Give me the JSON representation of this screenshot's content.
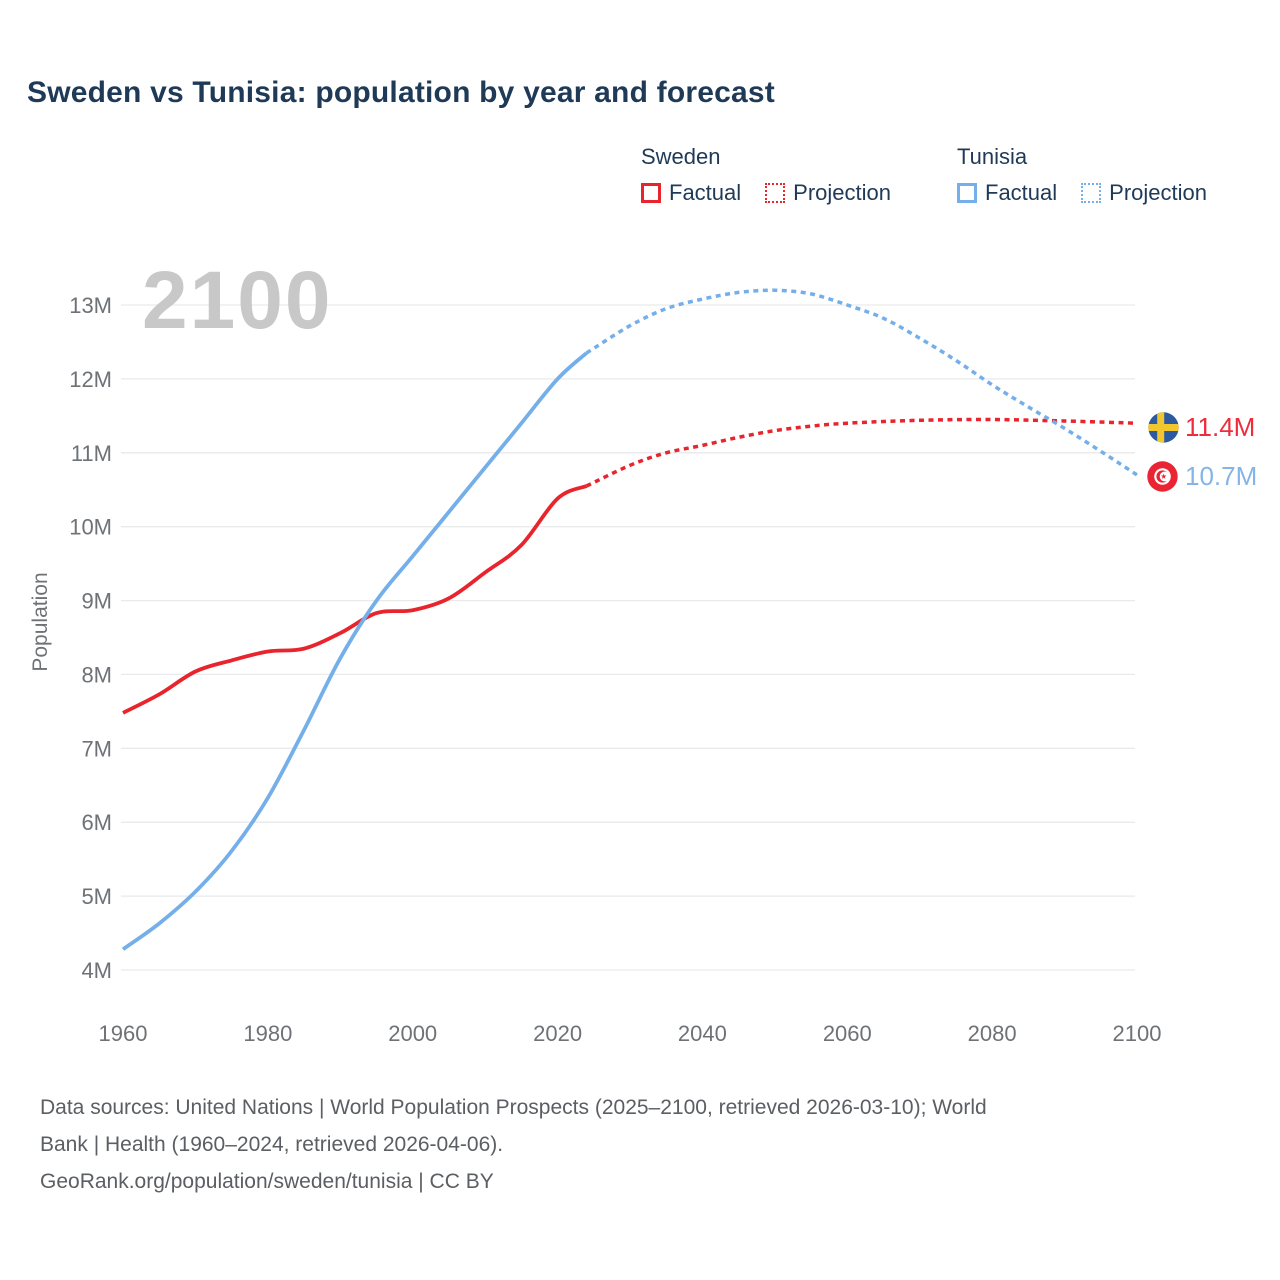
{
  "title": "Sweden vs Tunisia: population by year and forecast",
  "watermark": "2100",
  "legend": {
    "sweden": {
      "name": "Sweden",
      "factual": "Factual",
      "projection": "Projection"
    },
    "tunisia": {
      "name": "Tunisia",
      "factual": "Factual",
      "projection": "Projection"
    }
  },
  "end_labels": {
    "sweden": "11.4M",
    "tunisia": "10.7M"
  },
  "colors": {
    "sweden_line": "#e8242c",
    "tunisia_line": "#74afe9",
    "sweden_label_text": "#ee2d3c",
    "tunisia_label_text": "#85b5e8",
    "title_text": "#1f3a57",
    "axis_text": "#6e7276",
    "gridline": "#e9eaec",
    "watermark": "#c8c8c8",
    "footer_text": "#5b5e62",
    "sweden_flag_blue": "#2c5aa0",
    "sweden_flag_yellow": "#f2c72e",
    "tunisia_flag_red": "#e92433"
  },
  "chart_data": {
    "type": "line",
    "title": "Sweden vs Tunisia: population by year and forecast",
    "xlabel": "",
    "ylabel": "Population",
    "xlim": [
      1960,
      2100
    ],
    "ylim_m": [
      4,
      13
    ],
    "grid": "horizontal-only",
    "x_ticks": [
      1960,
      1980,
      2000,
      2020,
      2040,
      2060,
      2080,
      2100
    ],
    "y_tick_values": [
      4,
      5,
      6,
      7,
      8,
      9,
      10,
      11,
      12,
      13
    ],
    "y_tick_labels": [
      "4M",
      "5M",
      "6M",
      "7M",
      "8M",
      "9M",
      "10M",
      "11M",
      "12M",
      "13M"
    ],
    "series": [
      {
        "name": "Sweden Factual",
        "style": "solid",
        "color": "#e8242c",
        "points": [
          [
            1960,
            7.48
          ],
          [
            1965,
            7.73
          ],
          [
            1970,
            8.04
          ],
          [
            1975,
            8.19
          ],
          [
            1980,
            8.31
          ],
          [
            1985,
            8.35
          ],
          [
            1990,
            8.56
          ],
          [
            1995,
            8.83
          ],
          [
            2000,
            8.87
          ],
          [
            2005,
            9.03
          ],
          [
            2010,
            9.38
          ],
          [
            2015,
            9.75
          ],
          [
            2020,
            10.38
          ],
          [
            2024,
            10.55
          ]
        ]
      },
      {
        "name": "Sweden Projection",
        "style": "dotted",
        "color": "#e8242c",
        "points": [
          [
            2024,
            10.55
          ],
          [
            2030,
            10.83
          ],
          [
            2035,
            11.0
          ],
          [
            2040,
            11.1
          ],
          [
            2045,
            11.21
          ],
          [
            2050,
            11.3
          ],
          [
            2055,
            11.36
          ],
          [
            2060,
            11.4
          ],
          [
            2070,
            11.44
          ],
          [
            2080,
            11.45
          ],
          [
            2090,
            11.43
          ],
          [
            2100,
            11.4
          ]
        ]
      },
      {
        "name": "Tunisia Factual",
        "style": "solid",
        "color": "#74afe9",
        "points": [
          [
            1960,
            4.28
          ],
          [
            1965,
            4.63
          ],
          [
            1970,
            5.06
          ],
          [
            1975,
            5.61
          ],
          [
            1980,
            6.33
          ],
          [
            1985,
            7.25
          ],
          [
            1990,
            8.22
          ],
          [
            1995,
            9.0
          ],
          [
            2000,
            9.6
          ],
          [
            2005,
            10.2
          ],
          [
            2010,
            10.8
          ],
          [
            2015,
            11.4
          ],
          [
            2020,
            12.0
          ],
          [
            2024,
            12.35
          ]
        ]
      },
      {
        "name": "Tunisia Projection",
        "style": "dotted",
        "color": "#74afe9",
        "points": [
          [
            2024,
            12.35
          ],
          [
            2030,
            12.72
          ],
          [
            2035,
            12.95
          ],
          [
            2040,
            13.08
          ],
          [
            2045,
            13.17
          ],
          [
            2050,
            13.2
          ],
          [
            2055,
            13.15
          ],
          [
            2060,
            13.0
          ],
          [
            2065,
            12.82
          ],
          [
            2070,
            12.55
          ],
          [
            2075,
            12.25
          ],
          [
            2080,
            11.92
          ],
          [
            2085,
            11.62
          ],
          [
            2090,
            11.33
          ],
          [
            2095,
            11.02
          ],
          [
            2100,
            10.7
          ]
        ]
      }
    ],
    "end_values": {
      "sweden_2100": "11.4M",
      "tunisia_2100": "10.7M"
    }
  },
  "footer": {
    "line1": "Data sources: United Nations | World Population Prospects (2025–2100, retrieved 2026-03-10); World",
    "line2": "Bank | Health (1960–2024, retrieved 2026-04-06).",
    "line3": "GeoRank.org/population/sweden/tunisia | CC BY"
  }
}
